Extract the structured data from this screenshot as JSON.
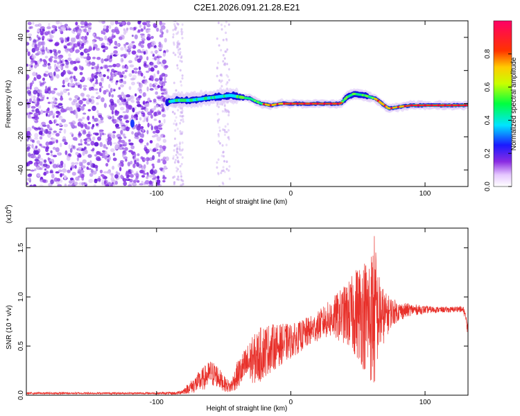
{
  "title": "C2E1.2026.091.21.28.E21",
  "colors": {
    "signal": "#e8302a",
    "noise": "#7f2be0",
    "noise_light": "#c9a8f0",
    "axis": "#000000"
  },
  "chart_data": [
    {
      "type": "heatmap",
      "name": "spectrogram",
      "xlabel": "Height of straight line (km)",
      "ylabel": "Frequency (Hz)",
      "xlim": [
        -197,
        132
      ],
      "ylim": [
        -50,
        50
      ],
      "xticks": [
        -100,
        0,
        100
      ],
      "xtick_labels": [
        "-100",
        "0",
        "100"
      ],
      "yticks": [
        -40,
        -20,
        0,
        20,
        40
      ],
      "ytick_labels": [
        "-40",
        "-20",
        "0",
        "20",
        "40"
      ],
      "ridge": [
        [
          -92,
          1
        ],
        [
          -85,
          2
        ],
        [
          -75,
          2
        ],
        [
          -65,
          3
        ],
        [
          -55,
          4
        ],
        [
          -45,
          5
        ],
        [
          -38,
          4
        ],
        [
          -30,
          3
        ],
        [
          -22,
          0
        ],
        [
          -15,
          -1
        ],
        [
          -8,
          0
        ],
        [
          0,
          0
        ],
        [
          10,
          0
        ],
        [
          20,
          0
        ],
        [
          30,
          0
        ],
        [
          37,
          0
        ],
        [
          42,
          4
        ],
        [
          47,
          6
        ],
        [
          55,
          5
        ],
        [
          63,
          3
        ],
        [
          68,
          0
        ],
        [
          73,
          -3
        ],
        [
          80,
          -2
        ],
        [
          90,
          -1
        ],
        [
          100,
          -1
        ],
        [
          110,
          -1
        ],
        [
          120,
          -1
        ],
        [
          132,
          -1
        ]
      ],
      "colorbar": {
        "label": "Normalized spectral amplitude",
        "range": [
          0,
          1
        ],
        "ticks": [
          0.0,
          0.2,
          0.4,
          0.6,
          0.8
        ],
        "tick_labels": [
          "0.0",
          "0.2",
          "0.4",
          "0.6",
          "0.8"
        ]
      }
    },
    {
      "type": "line",
      "name": "snr",
      "xlabel": "Height of straight line (km)",
      "ylabel": "SNR (10 * v/v)",
      "scale_note": "(x10",
      "scale_exp": "4",
      "scale_close": ")",
      "xlim": [
        -197,
        132
      ],
      "ylim": [
        0,
        1.7
      ],
      "xticks": [
        -100,
        0,
        100
      ],
      "xtick_labels": [
        "-100",
        "0",
        "100"
      ],
      "yticks": [
        0.0,
        0.5,
        1.0,
        1.5
      ],
      "ytick_labels": [
        "0.0",
        "0.5",
        "1.0",
        "1.5"
      ],
      "envelope_x": [
        -197,
        -150,
        -100,
        -85,
        -80,
        -75,
        -70,
        -65,
        -60,
        -55,
        -50,
        -45,
        -40,
        -35,
        -30,
        -25,
        -20,
        -15,
        -10,
        -5,
        0,
        5,
        10,
        15,
        20,
        25,
        30,
        35,
        40,
        45,
        50,
        55,
        60,
        62,
        65,
        70,
        75,
        80,
        90,
        100,
        110,
        120,
        125,
        129,
        132
      ],
      "envelope_mean": [
        0.02,
        0.02,
        0.02,
        0.02,
        0.04,
        0.08,
        0.12,
        0.17,
        0.22,
        0.2,
        0.12,
        0.08,
        0.2,
        0.28,
        0.35,
        0.38,
        0.45,
        0.48,
        0.5,
        0.53,
        0.55,
        0.58,
        0.62,
        0.66,
        0.7,
        0.75,
        0.78,
        0.8,
        0.82,
        0.82,
        0.85,
        0.82,
        0.8,
        0.85,
        0.82,
        0.8,
        0.85,
        0.85,
        0.87,
        0.87,
        0.87,
        0.87,
        0.88,
        0.86,
        0.68
      ],
      "envelope_amp": [
        0.01,
        0.01,
        0.01,
        0.015,
        0.03,
        0.06,
        0.1,
        0.12,
        0.14,
        0.12,
        0.08,
        0.06,
        0.14,
        0.18,
        0.22,
        0.28,
        0.28,
        0.25,
        0.22,
        0.2,
        0.18,
        0.16,
        0.16,
        0.15,
        0.15,
        0.17,
        0.2,
        0.25,
        0.3,
        0.38,
        0.5,
        0.58,
        0.7,
        0.85,
        0.45,
        0.25,
        0.15,
        0.1,
        0.06,
        0.04,
        0.03,
        0.03,
        0.03,
        0.04,
        0.08
      ]
    }
  ]
}
